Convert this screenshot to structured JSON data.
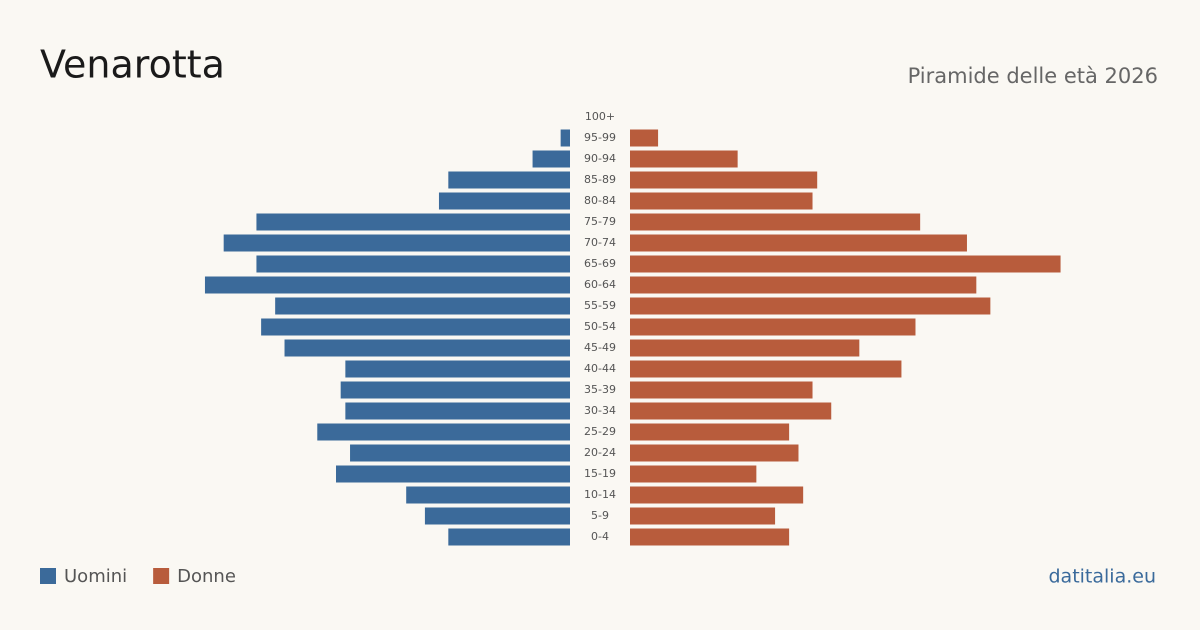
{
  "chart_data": {
    "type": "pyramid",
    "title": "Venarotta",
    "subtitle": "Piramide delle età 2026",
    "source": "datitalia.eu",
    "categories": [
      "100+",
      "95-99",
      "90-94",
      "85-89",
      "80-84",
      "75-79",
      "70-74",
      "65-69",
      "60-64",
      "55-59",
      "50-54",
      "45-49",
      "40-44",
      "35-39",
      "30-34",
      "25-29",
      "20-24",
      "15-19",
      "10-14",
      "5-9",
      "0-4"
    ],
    "series": [
      {
        "name": "Uomini",
        "color": "#3b6a9a",
        "values": [
          0,
          2,
          8,
          26,
          28,
          67,
          74,
          67,
          78,
          63,
          66,
          61,
          48,
          49,
          48,
          54,
          47,
          50,
          35,
          31,
          26
        ]
      },
      {
        "name": "Donne",
        "color": "#b85c3c",
        "values": [
          0,
          6,
          23,
          40,
          39,
          62,
          72,
          92,
          74,
          77,
          61,
          49,
          58,
          39,
          43,
          34,
          36,
          27,
          37,
          31,
          34
        ]
      }
    ],
    "xlim": [
      0,
      100
    ]
  }
}
